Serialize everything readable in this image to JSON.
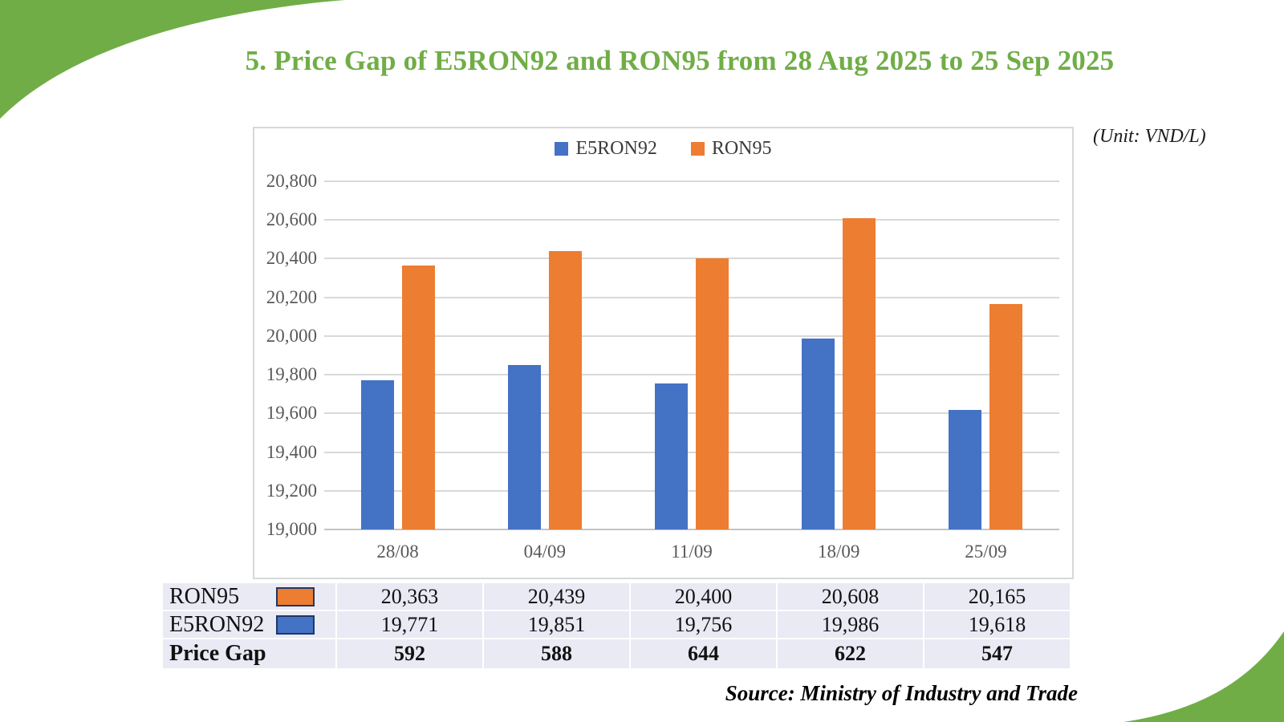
{
  "page": {
    "title": "5. Price Gap of E5RON92 and RON95 from 28 Aug 2025 to 25 Sep 2025",
    "unit_label": "(Unit: VND/L)",
    "source": "Source: Ministry of Industry and Trade"
  },
  "colors": {
    "e5ron92": "#4472C4",
    "ron95": "#ED7D31",
    "accent_green": "#70AD47",
    "gridline": "#D9D9D9",
    "tick_label": "#595959",
    "table_row_bg": "#E9EAF4",
    "swatch_border": "#1F3864"
  },
  "chart_data": {
    "type": "bar",
    "title": "5. Price Gap of E5RON92 and RON95 from 28 Aug 2025 to 25 Sep 2025",
    "categories": [
      "28/08",
      "04/09",
      "11/09",
      "18/09",
      "25/09"
    ],
    "series": [
      {
        "name": "E5RON92",
        "color_key": "e5ron92",
        "values": [
          19771,
          19851,
          19756,
          19986,
          19618
        ]
      },
      {
        "name": "RON95",
        "color_key": "ron95",
        "values": [
          20363,
          20439,
          20400,
          20608,
          20165
        ]
      }
    ],
    "ylabel": "VND/L",
    "ylim": [
      19000,
      20800
    ],
    "ytick_step": 200,
    "grid": "horizontal",
    "legend_position": "top-center"
  },
  "table": {
    "rows": [
      {
        "label": "RON95",
        "swatch": "ron95",
        "bold": false,
        "values": [
          "20,363",
          "20,439",
          "20,400",
          "20,608",
          "20,165"
        ]
      },
      {
        "label": "E5RON92",
        "swatch": "e5ron92",
        "bold": false,
        "values": [
          "19,771",
          "19,851",
          "19,756",
          "19,986",
          "19,618"
        ]
      },
      {
        "label": "Price Gap",
        "swatch": null,
        "bold": true,
        "values": [
          "592",
          "588",
          "644",
          "622",
          "547"
        ]
      }
    ]
  }
}
